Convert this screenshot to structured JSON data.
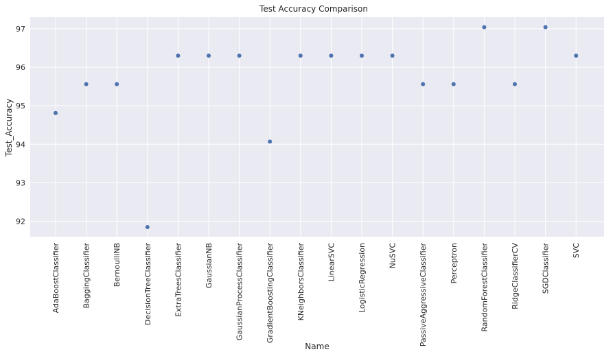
{
  "chart_data": {
    "type": "scatter",
    "title": "Test Accuracy Comparison",
    "xlabel": "Name",
    "ylabel": "Test_Accuracy",
    "categories": [
      "AdaBoostClassifier",
      "BaggingClassifier",
      "BernoulliNB",
      "DecisionTreeClassifier",
      "ExtraTreesClassifier",
      "GaussianNB",
      "GaussianProcessClassifier",
      "GradientBoostingClassifier",
      "KNeighborsClassifier",
      "LinearSVC",
      "LogisticRegression",
      "NuSVC",
      "PassiveAggressiveClassifier",
      "Perceptron",
      "RandomForestClassifier",
      "RidgeClassifierCV",
      "SGDClassifier",
      "SVC"
    ],
    "values": [
      94.81,
      95.56,
      95.56,
      91.85,
      96.3,
      96.3,
      96.3,
      94.07,
      96.3,
      96.3,
      96.3,
      96.3,
      95.56,
      95.56,
      97.04,
      95.56,
      97.04,
      96.3
    ],
    "yticks": [
      92,
      93,
      94,
      95,
      96,
      97
    ],
    "ylim": [
      91.6,
      97.3
    ],
    "grid": true,
    "colors": {
      "background": "#eaeaf2",
      "grid": "#ffffff",
      "point": "#4c72b0"
    }
  }
}
